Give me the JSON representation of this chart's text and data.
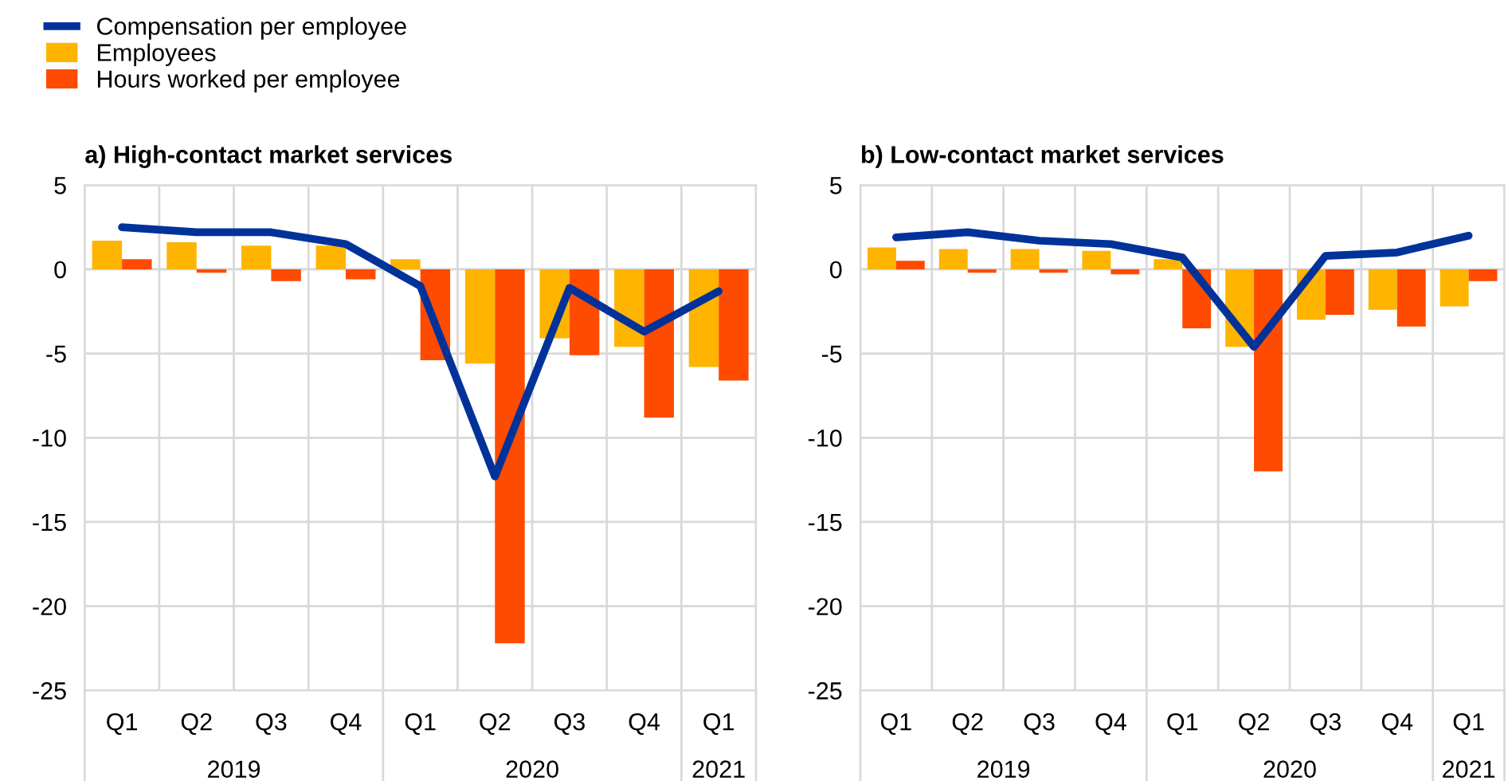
{
  "chart_data": [
    {
      "type": "bar",
      "title": "a) High-contact market services",
      "categories": [
        "Q1",
        "Q2",
        "Q3",
        "Q4",
        "Q1",
        "Q2",
        "Q3",
        "Q4",
        "Q1"
      ],
      "series": [
        {
          "name": "Compensation per employee",
          "type": "line",
          "color": "#003299",
          "values": [
            2.5,
            2.2,
            2.2,
            1.5,
            -1.0,
            -12.3,
            -1.1,
            -3.7,
            -1.3
          ]
        },
        {
          "name": "Employees",
          "color": "#ffb400",
          "values": [
            1.7,
            1.6,
            1.4,
            1.4,
            0.6,
            -5.6,
            -4.1,
            -4.6,
            -5.8
          ]
        },
        {
          "name": "Hours worked per employee",
          "color": "#ff4b00",
          "values": [
            0.6,
            -0.2,
            -0.7,
            -0.6,
            -5.4,
            -22.2,
            -5.1,
            -8.8,
            -6.6
          ]
        }
      ],
      "ylim": [
        -25,
        5
      ],
      "yticks": [
        -25,
        -20,
        -15,
        -10,
        -5,
        0,
        5
      ],
      "grid": true,
      "legend": "top left",
      "marker": "none",
      "annotations": [
        "2019",
        "2020",
        "2021"
      ]
    },
    {
      "type": "bar",
      "title": "b) Low-contact market services",
      "categories": [
        "Q1",
        "Q2",
        "Q3",
        "Q4",
        "Q1",
        "Q2",
        "Q3",
        "Q4",
        "Q1"
      ],
      "series": [
        {
          "type": "line",
          "color": "#003299",
          "values": [
            1.9,
            2.2,
            1.7,
            1.5,
            0.7,
            -4.6,
            0.8,
            1.0,
            2.0
          ]
        },
        {
          "color": "#ffb400",
          "values": [
            1.3,
            1.2,
            1.2,
            1.1,
            0.6,
            -4.6,
            -3.0,
            -2.4,
            -2.2
          ]
        },
        {
          "color": "#ff4b00",
          "values": [
            0.5,
            -0.2,
            -0.2,
            -0.3,
            -3.5,
            -12.0,
            -2.7,
            -3.4,
            -0.7
          ]
        }
      ],
      "ylim": [
        -25,
        5
      ],
      "yticks": [
        -25,
        -20,
        -15,
        -10,
        -5,
        0,
        5
      ],
      "grid": true,
      "legend": false,
      "marker": "none",
      "annotations": [
        "2019",
        "2020",
        "2021"
      ]
    }
  ]
}
